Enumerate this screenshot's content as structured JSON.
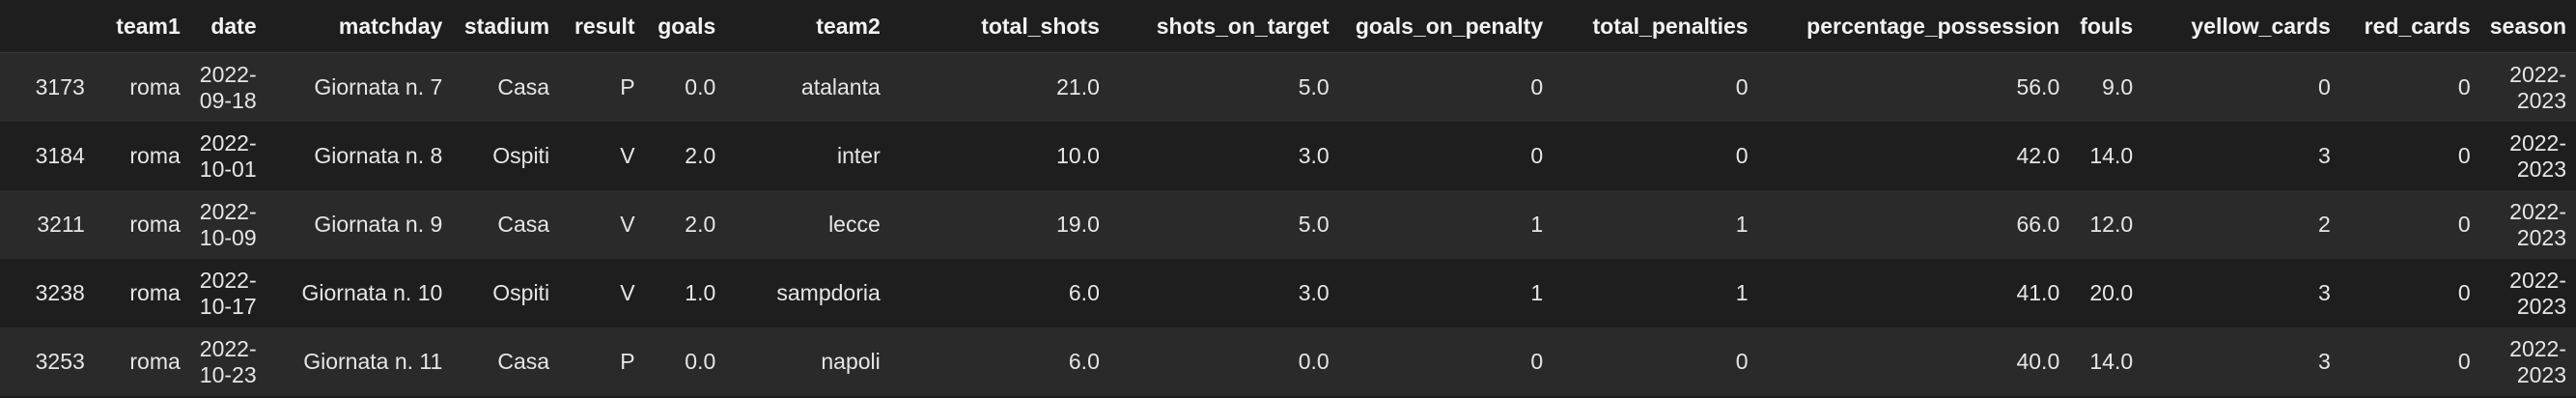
{
  "table": {
    "columns": [
      "",
      "team1",
      "date",
      "matchday",
      "stadium",
      "result",
      "goals",
      "team2",
      "total_shots",
      "shots_on_target",
      "goals_on_penalty",
      "total_penalties",
      "percentage_possession",
      "fouls",
      "yellow_cards",
      "red_cards",
      "season"
    ],
    "rows": [
      [
        "3173",
        "roma",
        "2022-09-18",
        "Giornata n. 7",
        "Casa",
        "P",
        "0.0",
        "atalanta",
        "21.0",
        "5.0",
        "0",
        "0",
        "56.0",
        "9.0",
        "0",
        "0",
        "2022-2023"
      ],
      [
        "3184",
        "roma",
        "2022-10-01",
        "Giornata n. 8",
        "Ospiti",
        "V",
        "2.0",
        "inter",
        "10.0",
        "3.0",
        "0",
        "0",
        "42.0",
        "14.0",
        "3",
        "0",
        "2022-2023"
      ],
      [
        "3211",
        "roma",
        "2022-10-09",
        "Giornata n. 9",
        "Casa",
        "V",
        "2.0",
        "lecce",
        "19.0",
        "5.0",
        "1",
        "1",
        "66.0",
        "12.0",
        "2",
        "0",
        "2022-2023"
      ],
      [
        "3238",
        "roma",
        "2022-10-17",
        "Giornata n. 10",
        "Ospiti",
        "V",
        "1.0",
        "sampdoria",
        "6.0",
        "3.0",
        "1",
        "1",
        "41.0",
        "20.0",
        "3",
        "0",
        "2022-2023"
      ],
      [
        "3253",
        "roma",
        "2022-10-23",
        "Giornata n. 11",
        "Casa",
        "P",
        "0.0",
        "napoli",
        "6.0",
        "0.0",
        "0",
        "0",
        "40.0",
        "14.0",
        "3",
        "0",
        "2022-2023"
      ]
    ]
  }
}
